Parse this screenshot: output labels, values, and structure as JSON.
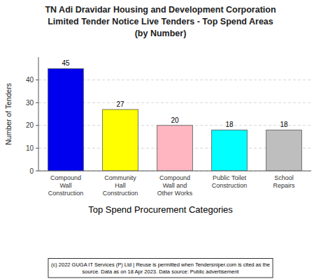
{
  "chart_data": {
    "type": "bar",
    "title": "TN Adi Dravidar Housing and Development Corporation\nLimited Tender Notice Live Tenders - Top Spend Areas\n(by Number)",
    "categories": [
      "Compound\nWall\nConstruction",
      "Community\nHall\nConstruction",
      "Compound\nWall and\nOther Works",
      "Public Toilet\nConstruction",
      "School\nRepairs"
    ],
    "values": [
      45,
      27,
      20,
      18,
      18
    ],
    "colors": [
      "#0000EE",
      "#FFFF00",
      "#FFB6C1",
      "#00FFFF",
      "#BEBEBE"
    ],
    "x_label": "Top Spend Procurement Categories",
    "y_label": "Number of Tenders",
    "ylim": [
      0,
      50
    ],
    "yticks": [
      0,
      10,
      20,
      30,
      40
    ],
    "grid": true,
    "data_labels": true,
    "annotations": [
      "(c) 2022 GUGA IT Services (P) Ltd | Reuse is permitted when Tendersniper.com is cited as the\nsource. Data as on 18 Apr 2023. Data source: Public advertisement"
    ]
  }
}
